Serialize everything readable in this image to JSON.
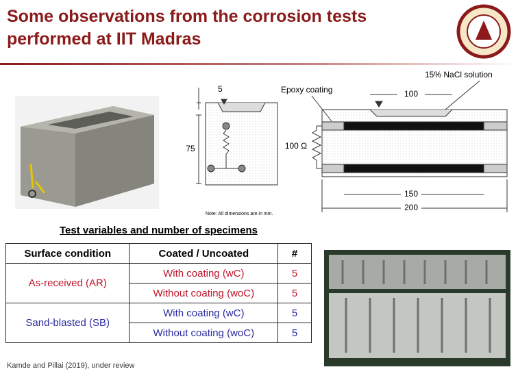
{
  "title": "Some observations from the corrosion tests performed at IIT Madras",
  "diagram": {
    "cross_depth": "5",
    "cross_height": "75",
    "epoxy": "Epoxy coating",
    "solution": "15% NaCl solution",
    "pond_width": "100",
    "resistor": "100 Ω",
    "bar_length": "150",
    "total_length": "200",
    "note": "Note: All dimensions are in mm."
  },
  "table": {
    "caption": "Test variables and number of specimens",
    "header": [
      "Surface condition",
      "Coated / Uncoated",
      "#"
    ],
    "groups": [
      {
        "condition": "As-received (AR)",
        "rows": [
          [
            "With coating (wC)",
            5
          ],
          [
            "Without coating (woC)",
            5
          ]
        ]
      },
      {
        "condition": "Sand-blasted (SB)",
        "rows": [
          [
            "With coating (wC)",
            5
          ],
          [
            "Without coating (woC)",
            5
          ]
        ]
      }
    ]
  },
  "footer": "Kamde and Pillai (2019), under review"
}
